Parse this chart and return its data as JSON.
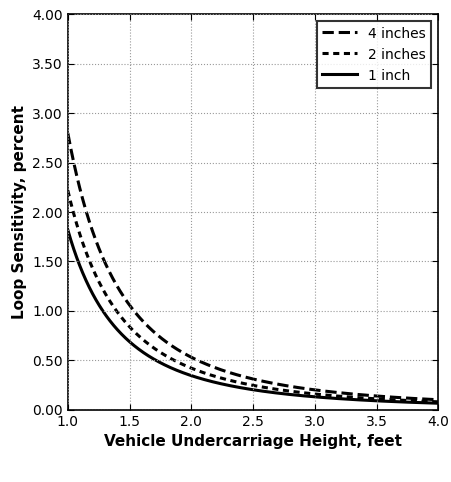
{
  "title": "",
  "xlabel": "Vehicle Undercarriage Height, feet",
  "ylabel": "Loop Sensitivity, percent",
  "xlim": [
    1.0,
    4.0
  ],
  "ylim": [
    0.0,
    4.0
  ],
  "xticks": [
    1.0,
    1.5,
    2.0,
    2.5,
    3.0,
    3.5,
    4.0
  ],
  "yticks": [
    0.0,
    0.5,
    1.0,
    1.5,
    2.0,
    2.5,
    3.0,
    3.5,
    4.0
  ],
  "series": [
    {
      "label": "4 inches",
      "linestyle": "--",
      "linewidth": 2.2,
      "color": "#000000",
      "A": 2.8,
      "k": 2.4
    },
    {
      "label": "2 inches",
      "linestyle": "densely_dotted",
      "linewidth": 2.2,
      "color": "#000000",
      "A": 2.22,
      "k": 2.4
    },
    {
      "label": "1 inch",
      "linestyle": "-",
      "linewidth": 2.2,
      "color": "#000000",
      "A": 1.82,
      "k": 2.4
    }
  ],
  "grid_color": "#999999",
  "background_color": "#ffffff",
  "legend_loc": "upper right",
  "legend_fontsize": 10,
  "xlabel_fontsize": 11,
  "ylabel_fontsize": 11,
  "tick_fontsize": 10,
  "figsize": [
    4.52,
    4.82
  ],
  "dpi": 100
}
